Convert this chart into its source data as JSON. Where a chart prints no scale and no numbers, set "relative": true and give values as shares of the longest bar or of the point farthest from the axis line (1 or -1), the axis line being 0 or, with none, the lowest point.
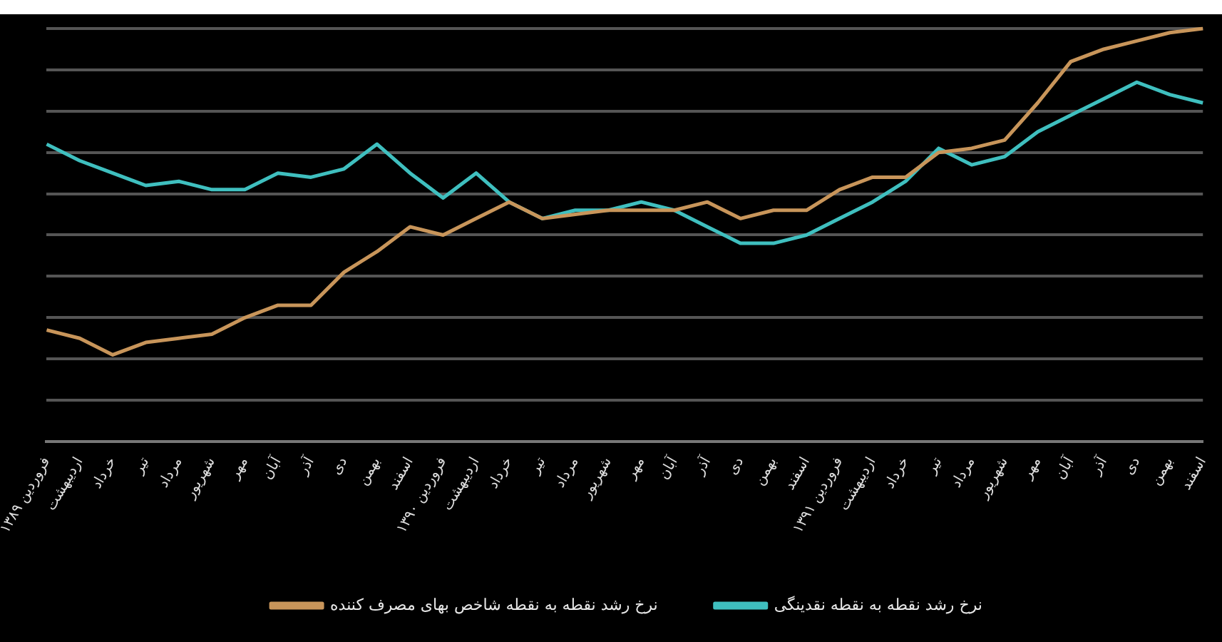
{
  "chart_data": {
    "type": "line",
    "relative": true,
    "grid": "y",
    "legend": "bottom",
    "marker": "none",
    "line_style": "solid",
    "categories": [
      "فروردین ۱۳۸۹",
      "اردیبهشت",
      "خرداد",
      "تیر",
      "مرداد",
      "شهریور",
      "مهر",
      "آبان",
      "آذر",
      "دی",
      "بهمن",
      "اسفند",
      "فروردین ۱۳۹۰",
      "اردیبهشت",
      "خرداد",
      "تیر",
      "مرداد",
      "شهریور",
      "مهر",
      "آبان",
      "آذر",
      "دی",
      "بهمن",
      "اسفند",
      "فروردین ۱۳۹۱",
      "اردیبهشت",
      "خرداد",
      "تیر",
      "مرداد",
      "شهریور",
      "مهر",
      "آبان",
      "آذر",
      "دی",
      "بهمن",
      "اسفند"
    ],
    "series": [
      {
        "name": "نرخ رشد نقطه به نقطه شاخص بهای مصرف کننده",
        "color": "#c8955a",
        "values": [
          0.27,
          0.25,
          0.21,
          0.24,
          0.25,
          0.26,
          0.3,
          0.33,
          0.33,
          0.41,
          0.46,
          0.52,
          0.5,
          0.54,
          0.58,
          0.54,
          0.55,
          0.56,
          0.56,
          0.56,
          0.58,
          0.54,
          0.56,
          0.56,
          0.61,
          0.64,
          0.64,
          0.7,
          0.71,
          0.73,
          0.82,
          0.92,
          0.95,
          0.97,
          0.99,
          1
        ]
      },
      {
        "name": "نرخ رشد نقطه به نقطه نقدینگی",
        "color": "#3fbfbf",
        "values": [
          0.72,
          0.68,
          0.65,
          0.62,
          0.63,
          0.61,
          0.61,
          0.65,
          0.64,
          0.66,
          0.72,
          0.65,
          0.59,
          0.65,
          0.58,
          0.54,
          0.56,
          0.56,
          0.58,
          0.56,
          0.52,
          0.48,
          0.48,
          0.5,
          0.54,
          0.58,
          0.63,
          0.71,
          0.67,
          0.69,
          0.75,
          0.79,
          0.83,
          0.87,
          0.84,
          0.82
        ]
      }
    ]
  }
}
